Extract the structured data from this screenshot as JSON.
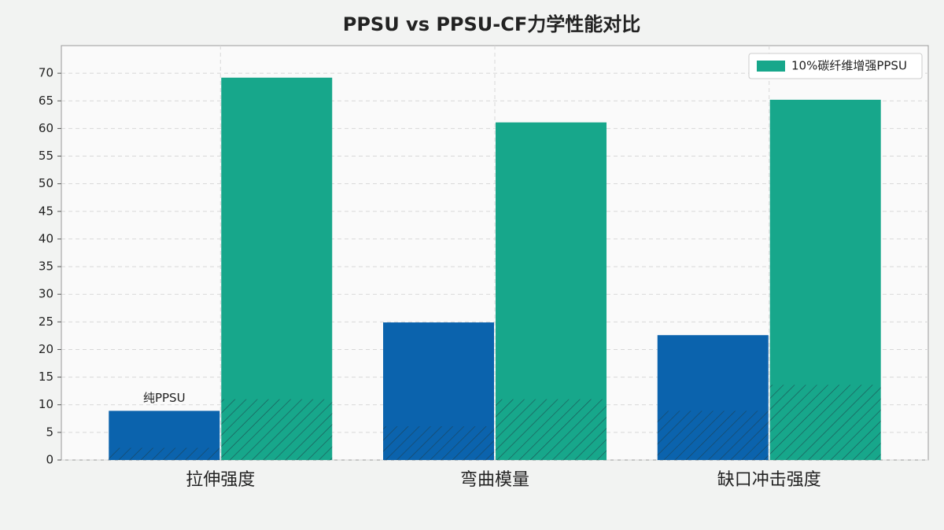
{
  "chart_data": {
    "type": "bar",
    "title": "PPSU vs PPSU-CF力学性能对比",
    "categories": [
      "拉伸强度",
      "弯曲模量",
      "缺口冲击强度"
    ],
    "series": [
      {
        "color": "#0b63ad",
        "values": [
          8.9,
          24.9,
          22.6
        ],
        "hatched_values": [
          2.2,
          6.1,
          8.9
        ]
      },
      {
        "name": "10%碳纤维增强PPSU",
        "color": "#17a78b",
        "values": [
          69.2,
          61.1,
          65.2
        ],
        "hatched_values": [
          11,
          11,
          13.6
        ]
      }
    ],
    "annotations": [
      {
        "text": "纯PPSU",
        "series": 0,
        "index": 0
      }
    ],
    "ylim": [
      0,
      75
    ],
    "yticks": [
      0,
      5,
      10,
      15,
      20,
      25,
      30,
      35,
      40,
      45,
      50,
      55,
      60,
      65,
      70
    ],
    "grid": true,
    "legend": "upper right"
  }
}
